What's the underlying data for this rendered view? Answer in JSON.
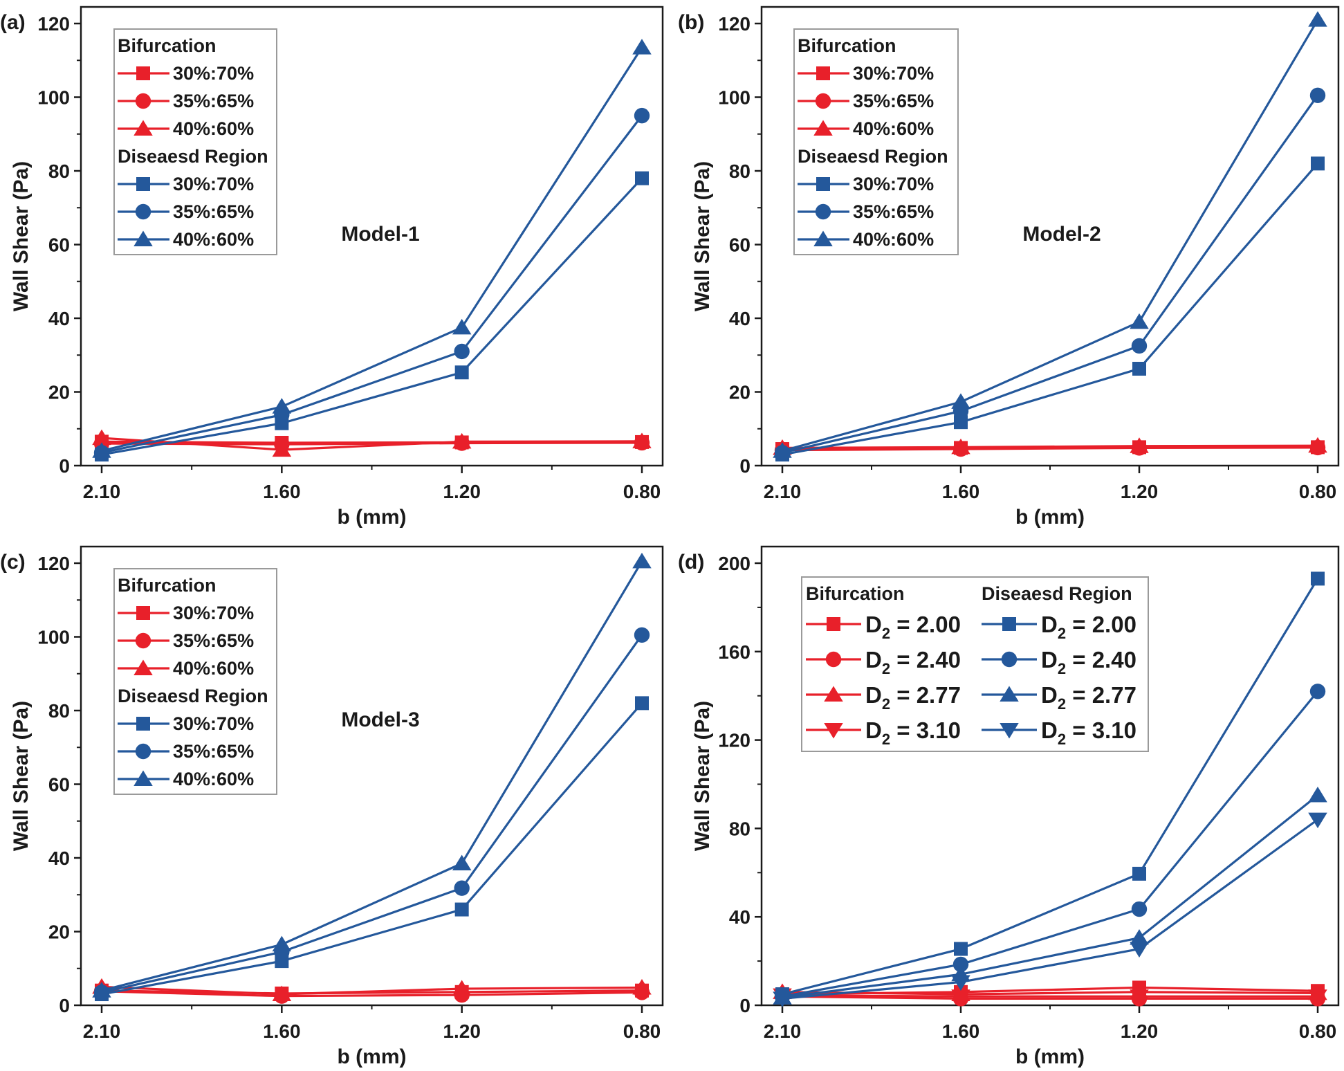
{
  "colors": {
    "red": "#e8202a",
    "blue": "#24589b",
    "axis": "#1a1a1a"
  },
  "chart_data": [
    {
      "panel": "(a)",
      "type": "line",
      "annotation": "Model-1",
      "xlabel": "b (mm)",
      "ylabel": "Wall Shear (Pa)",
      "categories": [
        "2.10",
        "1.60",
        "1.20",
        "0.80"
      ],
      "ylim": [
        0,
        120
      ],
      "yticks": [
        "0",
        "20",
        "40",
        "60",
        "80",
        "100",
        "120"
      ],
      "legend": {
        "groups": [
          {
            "title": "Bifurcation",
            "color": "red",
            "series_indices": [
              0,
              1,
              2
            ]
          },
          {
            "title": "Diseaesd Region",
            "color": "blue",
            "series_indices": [
              3,
              4,
              5
            ]
          }
        ]
      },
      "series": [
        {
          "name": "30%:70%",
          "group": "Bifurcation",
          "color": "red",
          "marker": "square",
          "values": [
            6.5,
            6.2,
            6.3,
            6.4
          ]
        },
        {
          "name": "35%:65%",
          "group": "Bifurcation",
          "color": "red",
          "marker": "circle",
          "values": [
            6.0,
            5.8,
            6.1,
            6.2
          ]
        },
        {
          "name": "40%:60%",
          "group": "Bifurcation",
          "color": "red",
          "marker": "triangle-up",
          "values": [
            7.5,
            4.3,
            6.5,
            6.6
          ]
        },
        {
          "name": "30%:70%",
          "group": "Diseaesd Region",
          "color": "blue",
          "marker": "square",
          "values": [
            3.0,
            11.5,
            25.3,
            78.0
          ]
        },
        {
          "name": "35%:65%",
          "group": "Diseaesd Region",
          "color": "blue",
          "marker": "circle",
          "values": [
            3.5,
            13.8,
            31.0,
            95.0
          ]
        },
        {
          "name": "40%:60%",
          "group": "Diseaesd Region",
          "color": "blue",
          "marker": "triangle-up",
          "values": [
            4.0,
            16.0,
            37.5,
            113.5
          ]
        }
      ]
    },
    {
      "panel": "(b)",
      "type": "line",
      "annotation": "Model-2",
      "xlabel": "b (mm)",
      "ylabel": "Wall Shear (Pa)",
      "categories": [
        "2.10",
        "1.60",
        "1.20",
        "0.80"
      ],
      "ylim": [
        0,
        120
      ],
      "yticks": [
        "0",
        "20",
        "40",
        "60",
        "80",
        "100",
        "120"
      ],
      "legend": {
        "groups": [
          {
            "title": "Bifurcation",
            "color": "red",
            "series_indices": [
              0,
              1,
              2
            ]
          },
          {
            "title": "Diseaesd Region",
            "color": "blue",
            "series_indices": [
              3,
              4,
              5
            ]
          }
        ]
      },
      "series": [
        {
          "name": "30%:70%",
          "group": "Bifurcation",
          "color": "red",
          "marker": "square",
          "values": [
            4.5,
            4.8,
            5.0,
            5.0
          ]
        },
        {
          "name": "35%:65%",
          "group": "Bifurcation",
          "color": "red",
          "marker": "circle",
          "values": [
            4.2,
            4.5,
            4.8,
            4.9
          ]
        },
        {
          "name": "40%:60%",
          "group": "Bifurcation",
          "color": "red",
          "marker": "triangle-up",
          "values": [
            4.8,
            5.0,
            5.3,
            5.4
          ]
        },
        {
          "name": "30%:70%",
          "group": "Diseaesd Region",
          "color": "blue",
          "marker": "square",
          "values": [
            3.0,
            11.8,
            26.3,
            82.0
          ]
        },
        {
          "name": "35%:65%",
          "group": "Diseaesd Region",
          "color": "blue",
          "marker": "circle",
          "values": [
            3.5,
            14.8,
            32.5,
            100.5
          ]
        },
        {
          "name": "40%:60%",
          "group": "Diseaesd Region",
          "color": "blue",
          "marker": "triangle-up",
          "values": [
            4.0,
            17.3,
            39.0,
            121.0
          ]
        }
      ]
    },
    {
      "panel": "(c)",
      "type": "line",
      "annotation": "Model-3",
      "xlabel": "b (mm)",
      "ylabel": "Wall Shear (Pa)",
      "categories": [
        "2.10",
        "1.60",
        "1.20",
        "0.80"
      ],
      "ylim": [
        0,
        120
      ],
      "yticks": [
        "0",
        "20",
        "40",
        "60",
        "80",
        "100",
        "120"
      ],
      "legend": {
        "groups": [
          {
            "title": "Bifurcation",
            "color": "red",
            "series_indices": [
              0,
              1,
              2
            ]
          },
          {
            "title": "Diseaesd Region",
            "color": "blue",
            "series_indices": [
              3,
              4,
              5
            ]
          }
        ]
      },
      "series": [
        {
          "name": "30%:70%",
          "group": "Bifurcation",
          "color": "red",
          "marker": "square",
          "values": [
            4.0,
            3.2,
            3.6,
            4.0
          ]
        },
        {
          "name": "35%:65%",
          "group": "Bifurcation",
          "color": "red",
          "marker": "circle",
          "values": [
            3.8,
            2.5,
            2.8,
            3.5
          ]
        },
        {
          "name": "40%:60%",
          "group": "Bifurcation",
          "color": "red",
          "marker": "triangle-up",
          "values": [
            5.0,
            3.0,
            4.5,
            4.8
          ]
        },
        {
          "name": "30%:70%",
          "group": "Diseaesd Region",
          "color": "blue",
          "marker": "square",
          "values": [
            3.0,
            12.0,
            26.0,
            82.0
          ]
        },
        {
          "name": "35%:65%",
          "group": "Diseaesd Region",
          "color": "blue",
          "marker": "circle",
          "values": [
            3.5,
            14.5,
            31.8,
            100.5
          ]
        },
        {
          "name": "40%:60%",
          "group": "Diseaesd Region",
          "color": "blue",
          "marker": "triangle-up",
          "values": [
            4.0,
            16.5,
            38.5,
            120.5
          ]
        }
      ]
    },
    {
      "panel": "(d)",
      "type": "line",
      "annotation": "",
      "xlabel": "b (mm)",
      "ylabel": "Wall Shear (Pa)",
      "categories": [
        "2.10",
        "1.60",
        "1.20",
        "0.80"
      ],
      "ylim": [
        0,
        200
      ],
      "yticks": [
        "0",
        "40",
        "80",
        "120",
        "160",
        "200"
      ],
      "legend": {
        "groups": [
          {
            "title": "Bifurcation",
            "color": "red",
            "series_indices": [
              0,
              1,
              2,
              3
            ]
          },
          {
            "title": "Diseaesd Region",
            "color": "blue",
            "series_indices": [
              4,
              5,
              6,
              7
            ]
          }
        ]
      },
      "series": [
        {
          "name": "D2 = 2.00",
          "label_prefix": "D",
          "label_sub": "2",
          "label_suffix": " = 2.00",
          "group": "Bifurcation",
          "color": "red",
          "marker": "square",
          "values": [
            5.0,
            6.0,
            8.0,
            6.5
          ]
        },
        {
          "name": "D2 = 2.40",
          "label_prefix": "D",
          "label_sub": "2",
          "label_suffix": " = 2.40",
          "group": "Bifurcation",
          "color": "red",
          "marker": "circle",
          "values": [
            4.0,
            3.0,
            3.0,
            3.0
          ]
        },
        {
          "name": "D2 = 2.77",
          "label_prefix": "D",
          "label_sub": "2",
          "label_suffix": " = 2.77",
          "group": "Bifurcation",
          "color": "red",
          "marker": "triangle-up",
          "values": [
            6.0,
            5.0,
            6.0,
            5.5
          ]
        },
        {
          "name": "D2 = 3.10",
          "label_prefix": "D",
          "label_sub": "2",
          "label_suffix": " = 3.10",
          "group": "Bifurcation",
          "color": "red",
          "marker": "triangle-down",
          "values": [
            4.5,
            4.0,
            4.0,
            4.0
          ]
        },
        {
          "name": "D2 = 2.00",
          "label_prefix": "D",
          "label_sub": "2",
          "label_suffix": " = 2.00",
          "group": "Diseaesd Region",
          "color": "blue",
          "marker": "square",
          "values": [
            5.0,
            25.5,
            59.5,
            193.0
          ]
        },
        {
          "name": "D2 = 2.40",
          "label_prefix": "D",
          "label_sub": "2",
          "label_suffix": " = 2.40",
          "group": "Diseaesd Region",
          "color": "blue",
          "marker": "circle",
          "values": [
            4.0,
            18.5,
            43.5,
            142.0
          ]
        },
        {
          "name": "D2 = 2.77",
          "label_prefix": "D",
          "label_sub": "2",
          "label_suffix": " = 2.77",
          "group": "Diseaesd Region",
          "color": "blue",
          "marker": "triangle-up",
          "values": [
            3.5,
            14.0,
            30.5,
            95.0
          ]
        },
        {
          "name": "D2 = 3.10",
          "label_prefix": "D",
          "label_sub": "2",
          "label_suffix": " = 3.10",
          "group": "Diseaesd Region",
          "color": "blue",
          "marker": "triangle-down",
          "values": [
            3.0,
            10.5,
            25.5,
            84.0
          ]
        }
      ]
    }
  ]
}
